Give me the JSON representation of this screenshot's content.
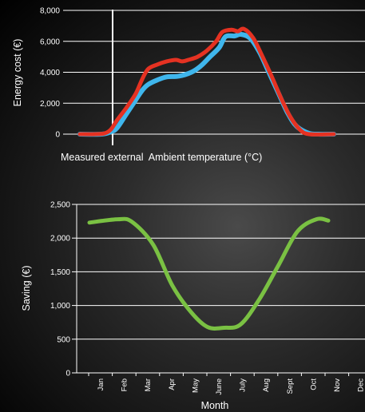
{
  "chart_data": [
    {
      "type": "line",
      "title": "",
      "xlabel": "Measured external  Ambient temperature (°C)",
      "ylabel": "Energy cost (€)",
      "ylim": [
        0,
        8000
      ],
      "yticks": [
        "0",
        "2,000",
        "4,000",
        "6,000",
        "8,000"
      ],
      "grid": true,
      "series": [
        {
          "color": "#3fb6ec",
          "points": [
            [
              0,
              0
            ],
            [
              7,
              0
            ],
            [
              10,
              150
            ],
            [
              12,
              400
            ],
            [
              15,
              1300
            ],
            [
              18,
              2200
            ],
            [
              20,
              2800
            ],
            [
              22,
              3200
            ],
            [
              25,
              3500
            ],
            [
              28,
              3700
            ],
            [
              32,
              3750
            ],
            [
              36,
              4000
            ],
            [
              39,
              4400
            ],
            [
              42,
              5000
            ],
            [
              45,
              5600
            ],
            [
              47,
              6300
            ],
            [
              50,
              6350
            ],
            [
              52,
              6450
            ],
            [
              55,
              6200
            ],
            [
              58,
              5300
            ],
            [
              61,
              4000
            ],
            [
              64,
              2700
            ],
            [
              67,
              1400
            ],
            [
              70,
              500
            ],
            [
              74,
              50
            ],
            [
              77,
              0
            ],
            [
              82,
              0
            ]
          ]
        },
        {
          "color": "#e53222",
          "points": [
            [
              0,
              0
            ],
            [
              5,
              0
            ],
            [
              8,
              50
            ],
            [
              10,
              300
            ],
            [
              12,
              900
            ],
            [
              15,
              1700
            ],
            [
              18,
              2600
            ],
            [
              20,
              3500
            ],
            [
              22,
              4200
            ],
            [
              25,
              4500
            ],
            [
              28,
              4700
            ],
            [
              31,
              4800
            ],
            [
              33,
              4700
            ],
            [
              35,
              4800
            ],
            [
              38,
              5000
            ],
            [
              41,
              5400
            ],
            [
              44,
              6000
            ],
            [
              46,
              6600
            ],
            [
              49,
              6750
            ],
            [
              51,
              6650
            ],
            [
              53,
              6800
            ],
            [
              56,
              6200
            ],
            [
              59,
              5000
            ],
            [
              62,
              3700
            ],
            [
              65,
              2300
            ],
            [
              68,
              1100
            ],
            [
              71,
              300
            ],
            [
              74,
              0
            ],
            [
              82,
              0
            ]
          ]
        }
      ]
    },
    {
      "type": "line",
      "title": "",
      "xlabel": "Month",
      "ylabel": "Saving (€)",
      "ylim": [
        0,
        2500
      ],
      "yticks": [
        "0",
        "500",
        "1,000",
        "1,500",
        "2,000",
        "2,500"
      ],
      "categories": [
        "Jan",
        "Feb",
        "Mar",
        "Apr",
        "May",
        "June",
        "July",
        "Aug",
        "Sept",
        "Oct",
        "Nov",
        "Dec"
      ],
      "grid": true,
      "series": [
        {
          "color": "#7ac143",
          "values": [
            2230,
            2280,
            2240,
            1900,
            1300,
            900,
            680,
            670,
            720,
            1100,
            1600,
            2100,
            2280,
            2260
          ],
          "x": [
            0,
            1.2,
            1.8,
            2.7,
            3.5,
            4.3,
            5.0,
            5.7,
            6.4,
            7.2,
            8.0,
            8.8,
            9.6,
            10.1
          ]
        }
      ]
    }
  ]
}
